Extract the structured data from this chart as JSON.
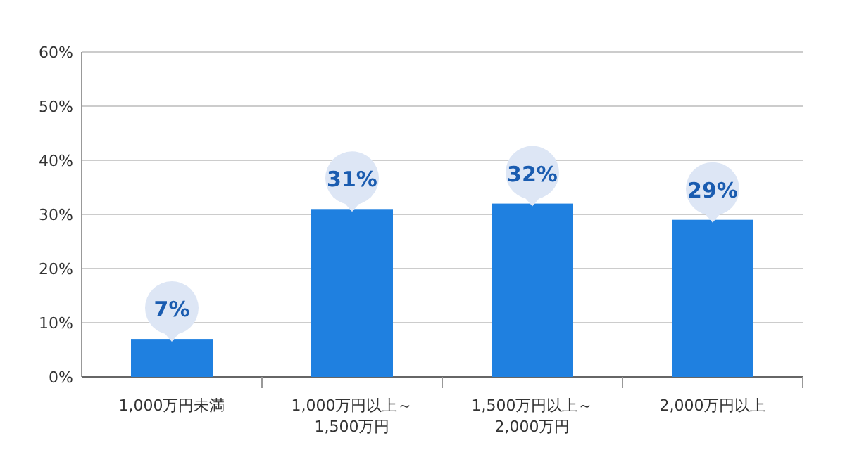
{
  "chart_data": {
    "type": "bar",
    "categories": [
      "1,000万円未満",
      "1,000万円以上～1,500万円",
      "1,500万円以上～2,000万円",
      "2,000万円以上"
    ],
    "values": [
      7,
      31,
      32,
      29
    ],
    "color": "#1f80e0",
    "value_labels": [
      "7%",
      "31%",
      "32%",
      "29%"
    ],
    "grid": "y",
    "ylim": [
      0,
      60
    ],
    "yticks": [
      {
        "value": 0,
        "label": "0%"
      },
      {
        "value": 10,
        "label": "10%"
      },
      {
        "value": 20,
        "label": "20%"
      },
      {
        "value": 30,
        "label": "30%"
      },
      {
        "value": 40,
        "label": "40%"
      },
      {
        "value": 50,
        "label": "50%"
      },
      {
        "value": 60,
        "label": "60%"
      }
    ]
  }
}
